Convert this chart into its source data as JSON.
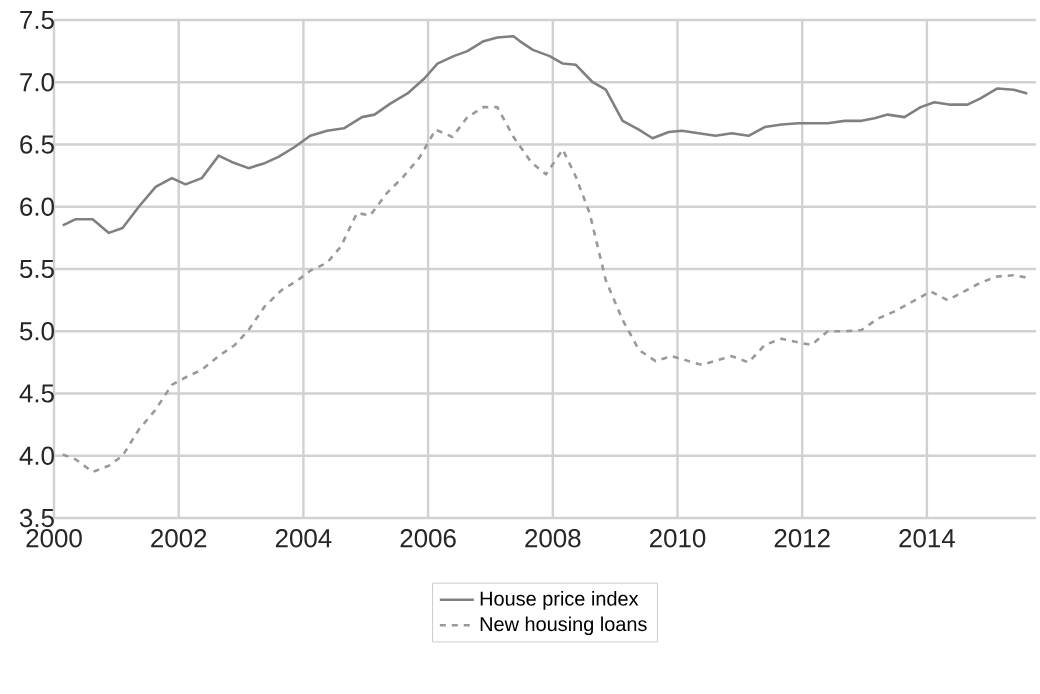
{
  "chart_data": {
    "type": "line",
    "xlim": [
      2000,
      2015.75
    ],
    "ylim": [
      3.5,
      7.5
    ],
    "xticks": [
      2000,
      2002,
      2004,
      2006,
      2008,
      2010,
      2012,
      2014
    ],
    "yticks": [
      {
        "value": 3.5,
        "label": "3.5"
      },
      {
        "value": 4,
        "label": "4.0"
      },
      {
        "value": 4.5,
        "label": "4.5"
      },
      {
        "value": 5,
        "label": "5.0"
      },
      {
        "value": 5.5,
        "label": "5.5"
      },
      {
        "value": 6,
        "label": "6.0"
      },
      {
        "value": 6.5,
        "label": "6.5"
      },
      {
        "value": 7,
        "label": "7.0"
      },
      {
        "value": 7.5,
        "label": "7.5"
      }
    ],
    "grid": true,
    "legend": "bottom",
    "marker": "none",
    "series": [
      {
        "name": "House price index",
        "color": "#808080",
        "line_style": "solid",
        "x": [
          2000.14,
          2000.35,
          2000.62,
          2000.88,
          2001.1,
          2001.36,
          2001.63,
          2001.89,
          2002.11,
          2002.37,
          2002.64,
          2002.85,
          2003.12,
          2003.38,
          2003.6,
          2003.86,
          2004.11,
          2004.38,
          2004.65,
          2004.94,
          2005.14,
          2005.4,
          2005.67,
          2005.94,
          2006.15,
          2006.41,
          2006.63,
          2006.89,
          2007.11,
          2007.37,
          2007.5,
          2007.68,
          2007.95,
          2008.16,
          2008.37,
          2008.64,
          2008.85,
          2009.12,
          2009.38,
          2009.6,
          2009.86,
          2010.07,
          2010.34,
          2010.61,
          2010.87,
          2011.14,
          2011.4,
          2011.67,
          2011.94,
          2012.2,
          2012.41,
          2012.68,
          2012.95,
          2013.16,
          2013.37,
          2013.64,
          2013.9,
          2014.12,
          2014.38,
          2014.65,
          2014.86,
          2015.13,
          2015.39,
          2015.61
        ],
        "values": [
          5.85,
          5.9,
          5.9,
          5.79,
          5.83,
          6.0,
          6.16,
          6.23,
          6.18,
          6.23,
          6.41,
          6.36,
          6.31,
          6.35,
          6.4,
          6.48,
          6.57,
          6.61,
          6.63,
          6.72,
          6.74,
          6.83,
          6.91,
          7.03,
          7.15,
          7.21,
          7.25,
          7.33,
          7.36,
          7.37,
          7.32,
          7.26,
          7.21,
          7.15,
          7.14,
          7.0,
          6.94,
          6.69,
          6.62,
          6.55,
          6.6,
          6.61,
          6.59,
          6.57,
          6.59,
          6.57,
          6.64,
          6.66,
          6.67,
          6.67,
          6.67,
          6.69,
          6.69,
          6.71,
          6.74,
          6.72,
          6.8,
          6.84,
          6.82,
          6.82,
          6.87,
          6.95,
          6.94,
          6.91
        ]
      },
      {
        "name": "New housing loans",
        "color": "#999999",
        "line_style": "dashed",
        "x": [
          2000.14,
          2000.35,
          2000.62,
          2000.88,
          2001.1,
          2001.36,
          2001.63,
          2001.89,
          2002.15,
          2002.37,
          2002.64,
          2002.9,
          2003.12,
          2003.38,
          2003.65,
          2003.91,
          2004.12,
          2004.38,
          2004.6,
          2004.86,
          2005.07,
          2005.34,
          2005.6,
          2005.87,
          2006.12,
          2006.39,
          2006.63,
          2006.89,
          2007.11,
          2007.37,
          2007.65,
          2007.89,
          2008.16,
          2008.37,
          2008.59,
          2008.85,
          2009.12,
          2009.38,
          2009.65,
          2009.91,
          2010.18,
          2010.39,
          2010.66,
          2010.87,
          2011.14,
          2011.4,
          2011.67,
          2011.94,
          2012.15,
          2012.41,
          2012.68,
          2012.95,
          2013.21,
          2013.48,
          2013.74,
          2014.06,
          2014.33,
          2014.6,
          2014.86,
          2015.13,
          2015.39,
          2015.61
        ],
        "values": [
          4.01,
          3.97,
          3.87,
          3.92,
          4.0,
          4.21,
          4.37,
          4.57,
          4.64,
          4.69,
          4.8,
          4.89,
          5.01,
          5.2,
          5.33,
          5.41,
          5.49,
          5.55,
          5.68,
          5.95,
          5.93,
          6.11,
          6.24,
          6.4,
          6.62,
          6.56,
          6.72,
          6.8,
          6.8,
          6.56,
          6.36,
          6.26,
          6.46,
          6.24,
          5.95,
          5.41,
          5.09,
          4.85,
          4.76,
          4.8,
          4.76,
          4.73,
          4.77,
          4.8,
          4.75,
          4.89,
          4.94,
          4.91,
          4.89,
          5.0,
          5.0,
          5.01,
          5.1,
          5.16,
          5.23,
          5.32,
          5.25,
          5.32,
          5.39,
          5.44,
          5.45,
          5.43
        ]
      }
    ]
  }
}
